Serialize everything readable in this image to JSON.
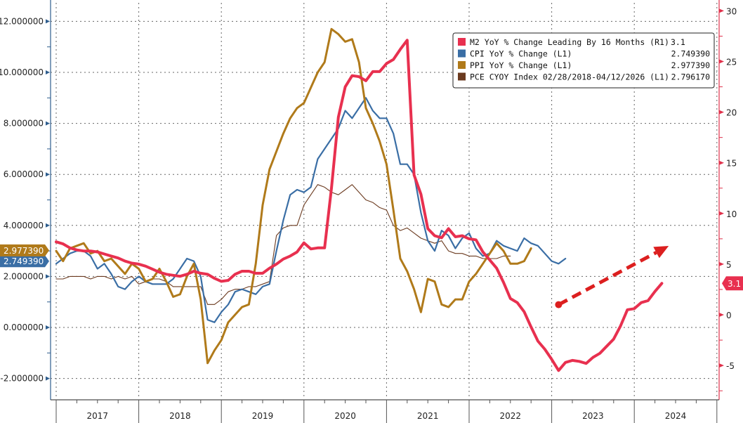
{
  "chart_data": {
    "type": "line",
    "title": "",
    "xlabel": "",
    "x_start": "2017-01",
    "x_end": "2024-12",
    "x_tick_labels": [
      "2017",
      "2018",
      "2019",
      "2020",
      "2021",
      "2022",
      "2023",
      "2024"
    ],
    "left_axis": {
      "ylim": [
        -2.7,
        12.8
      ],
      "ticks": [
        -2,
        0,
        2,
        4,
        6,
        8,
        10,
        12
      ],
      "tick_labels": [
        "-2.000000",
        "0.000000",
        "2.000000",
        "4.000000",
        "6.000000",
        "8.000000",
        "10.000000",
        "12.000000"
      ],
      "color": "#2f5e8e"
    },
    "right_axis": {
      "ylim": [
        -7.5,
        30.8
      ],
      "ticks": [
        -5,
        0,
        5,
        10,
        15,
        20,
        25,
        30
      ],
      "tick_labels": [
        "-5",
        "0",
        "5",
        "10",
        "15",
        "20",
        "25",
        "30"
      ],
      "color": "#e0314b"
    },
    "grid": true,
    "legend_position": "top-right",
    "legend": [
      {
        "name": "M2 YoY % Change Leading By 16 Months (R1)",
        "value": "3.1",
        "color": "#e8304f"
      },
      {
        "name": "CPI YoY % Change (L1)",
        "value": "2.749390",
        "color": "#3a6ea5"
      },
      {
        "name": "PPI YoY % Change (L1)",
        "value": "2.977390",
        "color": "#b07a1a"
      },
      {
        "name": "PCE CYOY Index 02/28/2018-04/12/2026 (L1)",
        "value": "2.796170",
        "color": "#6b3a1f"
      }
    ],
    "axis_badges": [
      {
        "series": "PPI YoY % Change (L1)",
        "axis": "left",
        "label": "2.977390",
        "value": 2.97739,
        "color": "#b07a1a"
      },
      {
        "series": "CPI YoY % Change (L1)",
        "axis": "left",
        "label": "2.749390",
        "value": 2.74939,
        "color": "#3a6ea5"
      },
      {
        "series": "M2 YoY % Change Leading By 16 Months (R1)",
        "axis": "right",
        "label": "3.1",
        "value": 3.1,
        "color": "#e8304f"
      }
    ],
    "series": [
      {
        "name": "M2 YoY % Change Leading By 16 Months (R1)",
        "axis": "right",
        "color": "#e8304f",
        "start": "2017-01",
        "values": [
          7.2,
          7.0,
          6.6,
          6.4,
          6.3,
          6.3,
          6.2,
          6.0,
          5.8,
          5.6,
          5.3,
          5.1,
          5.0,
          4.8,
          4.5,
          4.2,
          4.0,
          3.9,
          3.8,
          4.0,
          4.3,
          4.1,
          4.0,
          3.6,
          3.3,
          3.4,
          4.0,
          4.3,
          4.3,
          4.1,
          4.1,
          4.6,
          5.0,
          5.5,
          5.8,
          6.2,
          7.1,
          6.5,
          6.6,
          6.6,
          12.5,
          19.5,
          22.5,
          23.6,
          23.5,
          23.1,
          24.0,
          24.0,
          24.8,
          25.2,
          26.2,
          27.1,
          13.8,
          11.9,
          8.5,
          7.8,
          7.6,
          8.5,
          7.7,
          7.8,
          7.5,
          7.4,
          6.2,
          5.4,
          4.6,
          3.2,
          1.6,
          1.2,
          0.3,
          -1.2,
          -2.6,
          -3.4,
          -4.4,
          -5.5,
          -4.7,
          -4.5,
          -4.6,
          -4.8,
          -4.2,
          -3.8,
          -3.1,
          -2.4,
          -1.1,
          0.5,
          0.6,
          1.2,
          1.4,
          2.3,
          3.1
        ]
      },
      {
        "name": "CPI YoY % Change (L1)",
        "axis": "left",
        "color": "#3a6ea5",
        "start": "2017-01",
        "values": [
          2.5,
          2.7,
          2.9,
          3.0,
          3.0,
          2.8,
          2.3,
          2.5,
          2.1,
          1.6,
          1.5,
          1.8,
          2.0,
          1.8,
          1.7,
          1.7,
          1.7,
          1.9,
          2.3,
          2.7,
          2.6,
          2.0,
          0.3,
          0.2,
          0.6,
          0.9,
          1.4,
          1.5,
          1.4,
          1.3,
          1.6,
          1.7,
          3.0,
          4.2,
          5.2,
          5.4,
          5.3,
          5.5,
          6.6,
          7.0,
          7.4,
          7.8,
          8.5,
          8.2,
          8.6,
          9.0,
          8.5,
          8.2,
          8.2,
          7.6,
          6.4,
          6.4,
          6.0,
          4.5,
          3.4,
          3.0,
          3.8,
          3.6,
          3.1,
          3.5,
          3.7,
          3.1,
          2.8,
          2.9,
          3.4,
          3.2,
          3.1,
          3.0,
          3.5,
          3.3,
          3.2,
          2.9,
          2.6,
          2.5,
          2.7
        ]
      },
      {
        "name": "PPI YoY % Change (L1)",
        "axis": "left",
        "color": "#b07a1a",
        "start": "2017-01",
        "values": [
          3.0,
          2.6,
          3.1,
          3.2,
          3.3,
          2.9,
          3.0,
          2.6,
          2.7,
          2.4,
          2.1,
          2.5,
          2.3,
          1.8,
          1.9,
          2.3,
          1.8,
          1.2,
          1.3,
          2.0,
          2.5,
          1.1,
          -1.4,
          -0.9,
          -0.5,
          0.2,
          0.5,
          0.8,
          0.9,
          2.5,
          4.8,
          6.2,
          6.9,
          7.6,
          8.2,
          8.6,
          8.8,
          9.4,
          10.0,
          10.4,
          11.7,
          11.5,
          11.2,
          11.3,
          10.4,
          8.6,
          8.0,
          7.3,
          6.4,
          4.6,
          2.7,
          2.2,
          1.5,
          0.6,
          1.9,
          1.8,
          0.9,
          0.8,
          1.1,
          1.1,
          1.8,
          2.1,
          2.5,
          2.9,
          3.3,
          3.0,
          2.5,
          2.5,
          2.6,
          3.1
        ]
      },
      {
        "name": "PCE CYOY Index 02/28/2018-04/12/2026 (L1)",
        "axis": "left",
        "color": "#6b3a1f",
        "start": "2017-01",
        "values": [
          1.9,
          1.9,
          2.0,
          2.0,
          2.0,
          1.9,
          2.0,
          2.0,
          1.9,
          2.0,
          1.9,
          2.0,
          1.7,
          1.8,
          1.9,
          1.9,
          1.8,
          1.6,
          1.6,
          1.6,
          1.6,
          1.6,
          0.9,
          0.9,
          1.1,
          1.4,
          1.5,
          1.5,
          1.6,
          1.6,
          1.7,
          1.8,
          3.6,
          3.9,
          4.0,
          4.0,
          4.8,
          5.2,
          5.6,
          5.5,
          5.3,
          5.2,
          5.4,
          5.6,
          5.3,
          5.0,
          4.9,
          4.7,
          4.6,
          4.0,
          3.8,
          3.9,
          3.7,
          3.5,
          3.4,
          3.3,
          3.4,
          3.0,
          2.9,
          2.9,
          2.8,
          2.8,
          2.7,
          2.7,
          2.7,
          2.8,
          2.8
        ]
      }
    ],
    "annotation": {
      "type": "dashed-arrow",
      "description": "Upward trend arrow",
      "color": "#dc1f1f",
      "from": {
        "date": "2023-02",
        "axis": "right",
        "value": 1.0
      },
      "to": {
        "date": "2024-06",
        "axis": "right",
        "value": 6.8
      }
    }
  }
}
